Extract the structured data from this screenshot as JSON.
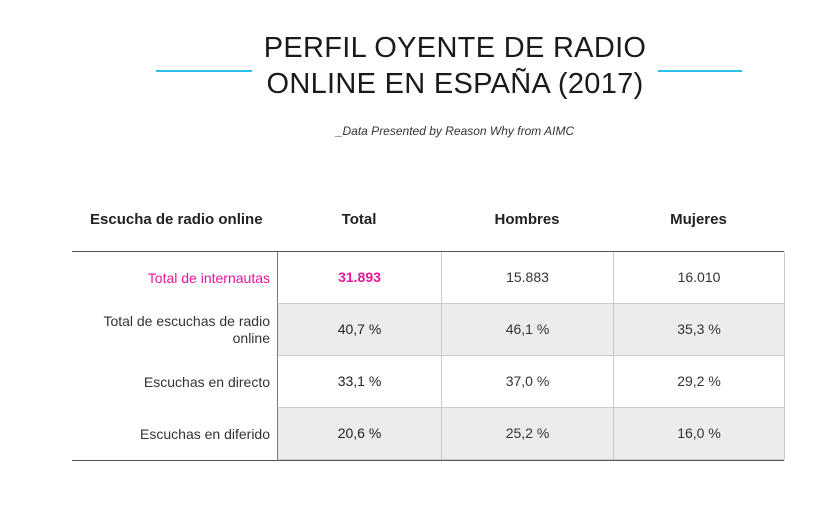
{
  "header": {
    "title_line1": "PERFIL OYENTE DE RADIO",
    "title_line2": "ONLINE EN ESPAÑA (2017)",
    "subtitle": "_Data Presented by Reason Why from AIMC",
    "accent_color": "#29c2e6",
    "highlight_color": "#e8169a"
  },
  "chart_data": {
    "type": "table",
    "columns": [
      "Escucha de radio online",
      "Total",
      "Hombres",
      "Mujeres"
    ],
    "rows": [
      [
        "Total de internautas",
        "31.893",
        "15.883",
        "16.010"
      ],
      [
        "Total de escuchas de radio online",
        "40,7 %",
        "46,1 %",
        "35,3 %"
      ],
      [
        "Escuchas en directo",
        "33,1 %",
        "37,0 %",
        "29,2 %"
      ],
      [
        "Escuchas en diferido",
        "20,6 %",
        "25,2 %",
        "16,0 %"
      ]
    ]
  }
}
